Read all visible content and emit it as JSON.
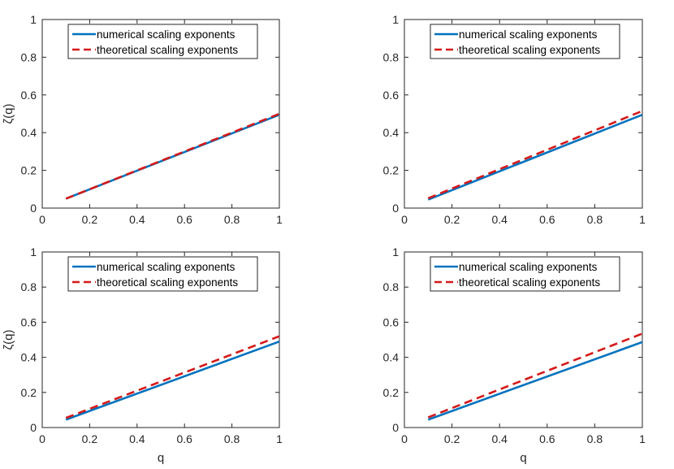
{
  "colors": {
    "numerical": "#0072BD",
    "theoretical": "#D51A1A",
    "axis": "#262626",
    "background": "#ffffff"
  },
  "chart_data": [
    {
      "type": "line",
      "panel": "top-left",
      "title": "",
      "xlabel": "",
      "ylabel": "ζ(q)",
      "xlim": [
        0,
        1
      ],
      "ylim": [
        0,
        1
      ],
      "xticks": [
        "0",
        "0.2",
        "0.4",
        "0.6",
        "0.8",
        "1"
      ],
      "yticks": [
        "0",
        "0.2",
        "0.4",
        "0.6",
        "0.8",
        "1"
      ],
      "legend_position": "top-center",
      "series": [
        {
          "name": "numerical scaling exponents",
          "style": "solid",
          "x": [
            0.1,
            1.0
          ],
          "y": [
            0.05,
            0.495
          ]
        },
        {
          "name": "theoretical scaling exponents",
          "style": "dashed",
          "x": [
            0.1,
            1.0
          ],
          "y": [
            0.05,
            0.5
          ]
        }
      ]
    },
    {
      "type": "line",
      "panel": "top-right",
      "title": "",
      "xlabel": "",
      "ylabel": "",
      "xlim": [
        0,
        1
      ],
      "ylim": [
        0,
        1
      ],
      "xticks": [
        "0",
        "0.2",
        "0.4",
        "0.6",
        "0.8",
        "1"
      ],
      "yticks": [
        "0",
        "0.2",
        "0.4",
        "0.6",
        "0.8",
        "1"
      ],
      "legend_position": "top-center",
      "series": [
        {
          "name": "numerical scaling exponents",
          "style": "solid",
          "x": [
            0.1,
            1.0
          ],
          "y": [
            0.045,
            0.495
          ]
        },
        {
          "name": "theoretical scaling exponents",
          "style": "dashed",
          "x": [
            0.1,
            1.0
          ],
          "y": [
            0.052,
            0.515
          ]
        }
      ]
    },
    {
      "type": "line",
      "panel": "bottom-left",
      "title": "",
      "xlabel": "q",
      "ylabel": "ζ(q)",
      "xlim": [
        0,
        1
      ],
      "ylim": [
        0,
        1
      ],
      "xticks": [
        "0",
        "0.2",
        "0.4",
        "0.6",
        "0.8",
        "1"
      ],
      "yticks": [
        "0",
        "0.2",
        "0.4",
        "0.6",
        "0.8",
        "1"
      ],
      "legend_position": "top-center",
      "series": [
        {
          "name": "numerical scaling exponents",
          "style": "solid",
          "x": [
            0.1,
            1.0
          ],
          "y": [
            0.045,
            0.49
          ]
        },
        {
          "name": "theoretical scaling exponents",
          "style": "dashed",
          "x": [
            0.1,
            1.0
          ],
          "y": [
            0.055,
            0.52
          ]
        }
      ]
    },
    {
      "type": "line",
      "panel": "bottom-right",
      "title": "",
      "xlabel": "q",
      "ylabel": "",
      "xlim": [
        0,
        1
      ],
      "ylim": [
        0,
        1
      ],
      "xticks": [
        "0",
        "0.2",
        "0.4",
        "0.6",
        "0.8",
        "1"
      ],
      "yticks": [
        "0",
        "0.2",
        "0.4",
        "0.6",
        "0.8",
        "1"
      ],
      "legend_position": "top-center",
      "series": [
        {
          "name": "numerical scaling exponents",
          "style": "solid",
          "x": [
            0.1,
            1.0
          ],
          "y": [
            0.045,
            0.487
          ]
        },
        {
          "name": "theoretical scaling exponents",
          "style": "dashed",
          "x": [
            0.1,
            1.0
          ],
          "y": [
            0.058,
            0.535
          ]
        }
      ]
    }
  ]
}
